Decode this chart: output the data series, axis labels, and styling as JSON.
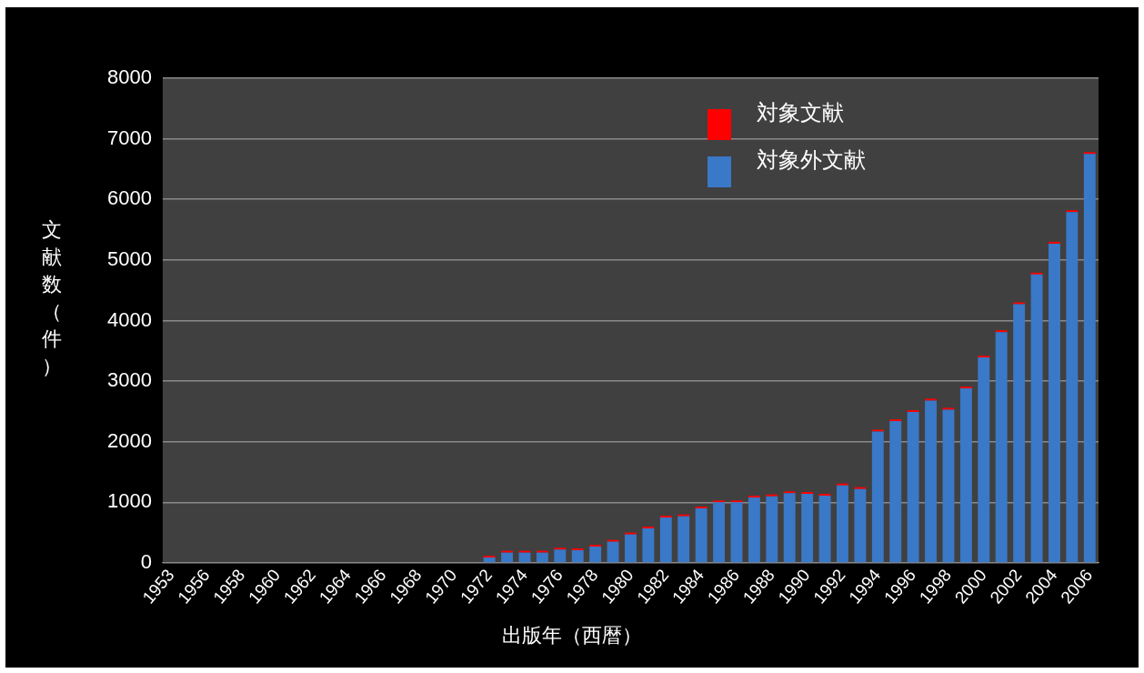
{
  "chart_data": {
    "type": "bar",
    "stacked": true,
    "xlabel": "出版年（西暦）",
    "ylabel": "文献数（件）",
    "categories": [
      "1953",
      null,
      "1956",
      null,
      "1958",
      null,
      "1960",
      null,
      "1962",
      null,
      "1964",
      null,
      "1966",
      null,
      "1968",
      null,
      "1970",
      null,
      "1972",
      null,
      "1974",
      null,
      "1976",
      null,
      "1978",
      null,
      "1980",
      null,
      "1982",
      null,
      "1984",
      null,
      "1986",
      null,
      "1988",
      null,
      "1990",
      null,
      "1992",
      null,
      "1994",
      null,
      "1996",
      null,
      "1998",
      null,
      "2000",
      null,
      "2002",
      null,
      "2004",
      null,
      "2006"
    ],
    "series": [
      {
        "name": "対象外文献",
        "color": "#3a78c8",
        "values": [
          0,
          0,
          0,
          0,
          0,
          0,
          0,
          0,
          0,
          0,
          0,
          0,
          0,
          0,
          0,
          0,
          0,
          null,
          90,
          170,
          170,
          170,
          220,
          210,
          270,
          350,
          470,
          570,
          750,
          770,
          900,
          1000,
          1000,
          1080,
          1100,
          1150,
          1140,
          1110,
          1280,
          1220,
          2170,
          2340,
          2490,
          2680,
          2530,
          2880,
          3390,
          3810,
          4270,
          4760,
          5270,
          5790,
          6750
        ]
      },
      {
        "name": "対象文献",
        "color": "#ff0000",
        "values": [
          0,
          0,
          0,
          0,
          0,
          0,
          0,
          0,
          0,
          0,
          0,
          0,
          0,
          0,
          0,
          0,
          0,
          0,
          30,
          30,
          30,
          30,
          30,
          30,
          30,
          30,
          30,
          30,
          30,
          30,
          30,
          30,
          30,
          30,
          30,
          30,
          30,
          30,
          30,
          30,
          30,
          30,
          30,
          30,
          30,
          30,
          30,
          30,
          30,
          30,
          30,
          30,
          30
        ]
      }
    ],
    "ylim": [
      0,
      8000
    ],
    "yticks": [
      0,
      1000,
      2000,
      3000,
      4000,
      5000,
      6000,
      7000,
      8000
    ],
    "grid": "y",
    "legend": "top right"
  }
}
